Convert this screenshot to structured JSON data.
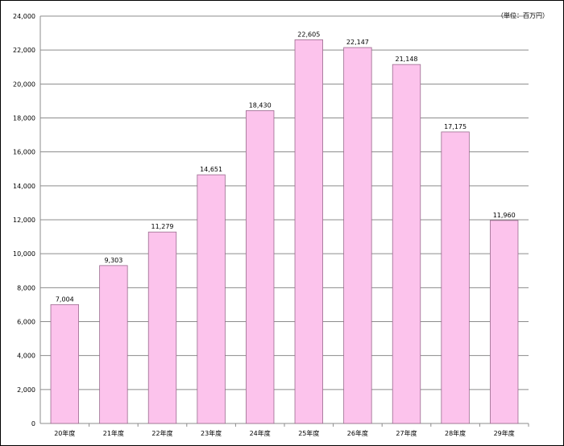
{
  "chart_data": {
    "type": "bar",
    "unit_label": "（単位：百万円）",
    "categories": [
      "20年度",
      "21年度",
      "22年度",
      "23年度",
      "24年度",
      "25年度",
      "26年度",
      "27年度",
      "28年度",
      "29年度"
    ],
    "values": [
      7004,
      9303,
      11279,
      14651,
      18430,
      22605,
      22147,
      21148,
      17175,
      11960
    ],
    "value_labels": [
      "7,004",
      "9,303",
      "11,279",
      "14,651",
      "18,430",
      "22,605",
      "22,147",
      "21,148",
      "17,175",
      "11,960"
    ],
    "y_ticks": [
      "0",
      "2,000",
      "4,000",
      "6,000",
      "8,000",
      "10,000",
      "12,000",
      "14,000",
      "16,000",
      "18,000",
      "20,000",
      "22,000",
      "24,000"
    ],
    "ylim": [
      0,
      24000
    ],
    "grid": true,
    "colors": {
      "bar_fill": "#fcc3ec",
      "bar_stroke": "#9a6b8e",
      "grid": "#8c8c8c"
    }
  }
}
